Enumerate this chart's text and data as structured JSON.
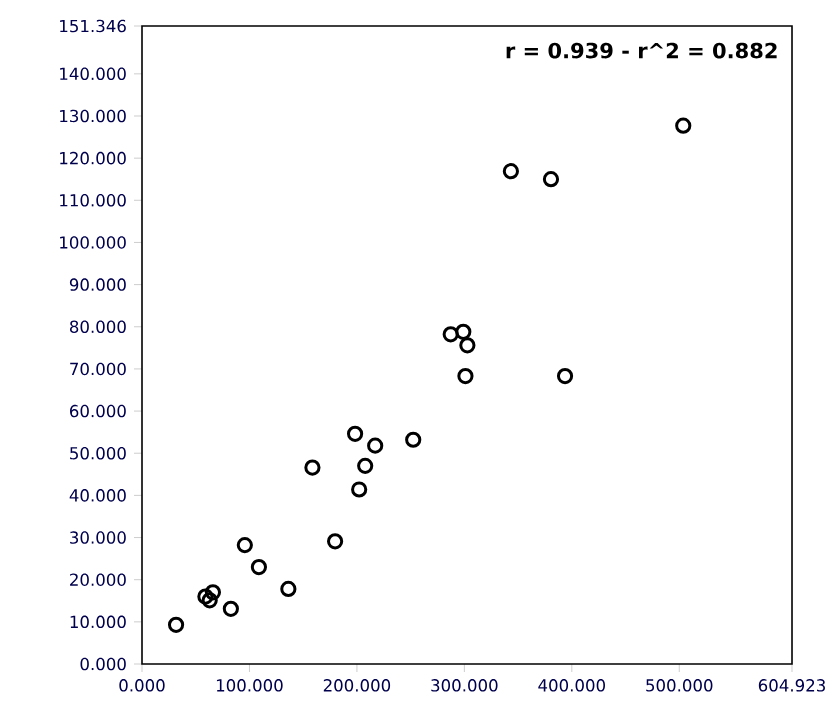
{
  "chart_data": {
    "type": "scatter",
    "annotations": [
      "r = 0.939 - r^2 = 0.882"
    ],
    "x": [
      31.7,
      59,
      63,
      66,
      82.7,
      95.7,
      108.8,
      136.2,
      179.7,
      158.6,
      198.3,
      202.1,
      207.7,
      217,
      252.4,
      301,
      393.7,
      302.8,
      287.3,
      299,
      343.3,
      380.6,
      503.7
    ],
    "values": [
      9.3,
      16.0,
      15.1,
      17.0,
      13.1,
      28.2,
      23.0,
      17.8,
      29.1,
      46.6,
      54.6,
      41.4,
      47.0,
      51.8,
      53.2,
      68.3,
      68.3,
      75.6,
      78.2,
      78.8,
      116.9,
      115.0,
      127.7
    ],
    "color": "#000000",
    "marker": "circle",
    "xlim": [
      0,
      604.923
    ],
    "ylim": [
      0,
      151.346
    ],
    "xticks": [
      {
        "value": 0,
        "label": "0.000"
      },
      {
        "value": 100,
        "label": "100.000"
      },
      {
        "value": 200,
        "label": "200.000"
      },
      {
        "value": 300,
        "label": "300.000"
      },
      {
        "value": 400,
        "label": "400.000"
      },
      {
        "value": 500,
        "label": "500.000"
      },
      {
        "value": 604.923,
        "label": "604.923"
      }
    ],
    "yticks": [
      {
        "value": 0,
        "label": "0.000"
      },
      {
        "value": 10,
        "label": "10.000"
      },
      {
        "value": 20,
        "label": "20.000"
      },
      {
        "value": 30,
        "label": "30.000"
      },
      {
        "value": 40,
        "label": "40.000"
      },
      {
        "value": 50,
        "label": "50.000"
      },
      {
        "value": 60,
        "label": "60.000"
      },
      {
        "value": 70,
        "label": "70.000"
      },
      {
        "value": 80,
        "label": "80.000"
      },
      {
        "value": 90,
        "label": "90.000"
      },
      {
        "value": 100,
        "label": "100.000"
      },
      {
        "value": 110,
        "label": "110.000"
      },
      {
        "value": 120,
        "label": "120.000"
      },
      {
        "value": 130,
        "label": "130.000"
      },
      {
        "value": 140,
        "label": "140.000"
      },
      {
        "value": 151.346,
        "label": "151.346"
      }
    ],
    "grid": false
  }
}
